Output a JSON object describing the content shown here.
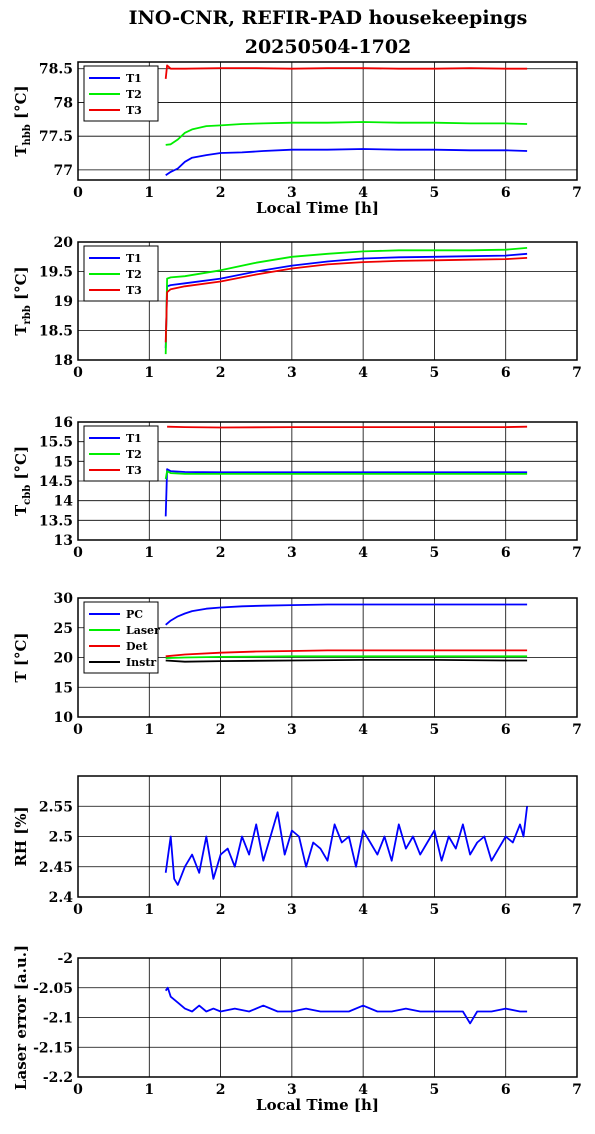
{
  "figure": {
    "title_line1": "INO-CNR, REFIR-PAD housekeepings",
    "title_line2": "20250504-1702"
  },
  "chart_data": [
    {
      "type": "line",
      "id": "hbb",
      "ylabel_main": "T",
      "ylabel_sub": "hbb",
      "ylabel_unit": "[°C]",
      "xlabel": "Local Time [h]",
      "xlim": [
        0,
        7
      ],
      "ylim": [
        76.85,
        78.6
      ],
      "xticks": [
        0,
        1,
        2,
        3,
        4,
        5,
        6,
        7
      ],
      "yticks": [
        77,
        77.5,
        78,
        78.5
      ],
      "ytick_labels": [
        "77",
        "77.5",
        "78",
        "78.5"
      ],
      "grid": true,
      "legend": "top-left",
      "series": [
        {
          "name": "T1",
          "color": "#0000ff",
          "x": [
            1.23,
            1.3,
            1.4,
            1.5,
            1.6,
            1.8,
            2.0,
            2.3,
            2.6,
            3.0,
            3.5,
            4.0,
            4.5,
            5.0,
            5.5,
            6.0,
            6.3
          ],
          "y": [
            76.92,
            76.97,
            77.02,
            77.12,
            77.18,
            77.22,
            77.25,
            77.26,
            77.28,
            77.3,
            77.3,
            77.31,
            77.3,
            77.3,
            77.29,
            77.29,
            77.28
          ]
        },
        {
          "name": "T2",
          "color": "#00ee00",
          "x": [
            1.23,
            1.3,
            1.4,
            1.5,
            1.6,
            1.8,
            2.0,
            2.3,
            2.6,
            3.0,
            3.5,
            4.0,
            4.5,
            5.0,
            5.5,
            6.0,
            6.3
          ],
          "y": [
            77.37,
            77.38,
            77.45,
            77.55,
            77.6,
            77.65,
            77.66,
            77.68,
            77.69,
            77.7,
            77.7,
            77.71,
            77.7,
            77.7,
            77.69,
            77.69,
            77.68
          ]
        },
        {
          "name": "T3",
          "color": "#ee0000",
          "x": [
            1.23,
            1.25,
            1.3,
            1.5,
            2.0,
            2.5,
            3.0,
            3.5,
            4.0,
            4.5,
            5.0,
            5.5,
            6.0,
            6.3
          ],
          "y": [
            78.35,
            78.55,
            78.5,
            78.5,
            78.51,
            78.51,
            78.5,
            78.51,
            78.51,
            78.5,
            78.5,
            78.51,
            78.5,
            78.5
          ]
        }
      ]
    },
    {
      "type": "line",
      "id": "rbb",
      "ylabel_main": "T",
      "ylabel_sub": "rbb",
      "ylabel_unit": "[°C]",
      "xlabel": "",
      "xlim": [
        0,
        7
      ],
      "ylim": [
        18,
        20
      ],
      "xticks": [
        0,
        1,
        2,
        3,
        4,
        5,
        6,
        7
      ],
      "yticks": [
        18,
        18.5,
        19,
        19.5,
        20
      ],
      "ytick_labels": [
        "18",
        "18.5",
        "19",
        "19.5",
        "20"
      ],
      "grid": true,
      "legend": "top-left",
      "series": [
        {
          "name": "T1",
          "color": "#0000ff",
          "x": [
            1.23,
            1.25,
            1.3,
            1.5,
            2.0,
            2.5,
            3.0,
            3.5,
            4.0,
            4.5,
            5.0,
            5.5,
            6.0,
            6.3
          ],
          "y": [
            18.2,
            19.25,
            19.27,
            19.3,
            19.38,
            19.5,
            19.6,
            19.67,
            19.72,
            19.74,
            19.75,
            19.76,
            19.77,
            19.8
          ]
        },
        {
          "name": "T2",
          "color": "#00ee00",
          "x": [
            1.23,
            1.25,
            1.3,
            1.5,
            2.0,
            2.5,
            3.0,
            3.5,
            4.0,
            4.5,
            5.0,
            5.5,
            6.0,
            6.3
          ],
          "y": [
            18.1,
            19.38,
            19.4,
            19.42,
            19.52,
            19.65,
            19.75,
            19.8,
            19.84,
            19.86,
            19.86,
            19.86,
            19.87,
            19.9
          ]
        },
        {
          "name": "T3",
          "color": "#ee0000",
          "x": [
            1.23,
            1.25,
            1.3,
            1.5,
            2.0,
            2.5,
            3.0,
            3.5,
            4.0,
            4.5,
            5.0,
            5.5,
            6.0,
            6.3
          ],
          "y": [
            18.3,
            19.15,
            19.2,
            19.25,
            19.33,
            19.45,
            19.55,
            19.62,
            19.66,
            19.68,
            19.69,
            19.7,
            19.71,
            19.73
          ]
        }
      ]
    },
    {
      "type": "line",
      "id": "cbb",
      "ylabel_main": "T",
      "ylabel_sub": "cbb",
      "ylabel_unit": "[°C]",
      "xlabel": "",
      "xlim": [
        0,
        7
      ],
      "ylim": [
        13,
        16
      ],
      "xticks": [
        0,
        1,
        2,
        3,
        4,
        5,
        6,
        7
      ],
      "yticks": [
        13,
        13.5,
        14,
        14.5,
        15,
        15.5,
        16
      ],
      "ytick_labels": [
        "13",
        "13.5",
        "14",
        "14.5",
        "15",
        "15.5",
        "16"
      ],
      "grid": true,
      "legend": "top-left",
      "series": [
        {
          "name": "T1",
          "color": "#0000ff",
          "x": [
            1.23,
            1.25,
            1.3,
            1.5,
            2.0,
            3.0,
            4.0,
            5.0,
            6.0,
            6.3
          ],
          "y": [
            13.6,
            14.8,
            14.75,
            14.73,
            14.72,
            14.72,
            14.72,
            14.72,
            14.72,
            14.72
          ]
        },
        {
          "name": "T2",
          "color": "#00ee00",
          "x": [
            1.23,
            1.25,
            1.3,
            1.5,
            2.0,
            3.0,
            4.0,
            5.0,
            6.0,
            6.3
          ],
          "y": [
            14.55,
            14.75,
            14.7,
            14.68,
            14.68,
            14.68,
            14.68,
            14.68,
            14.68,
            14.68
          ]
        },
        {
          "name": "T3",
          "color": "#ee0000",
          "x": [
            1.25,
            1.5,
            2.0,
            3.0,
            4.0,
            5.0,
            6.0,
            6.3
          ],
          "y": [
            15.88,
            15.87,
            15.86,
            15.87,
            15.87,
            15.87,
            15.87,
            15.88
          ]
        }
      ]
    },
    {
      "type": "line",
      "id": "temps",
      "ylabel_main": "T [°C]",
      "ylabel_sub": "",
      "ylabel_unit": "",
      "xlabel": "",
      "xlim": [
        0,
        7
      ],
      "ylim": [
        10,
        30
      ],
      "xticks": [
        0,
        1,
        2,
        3,
        4,
        5,
        6,
        7
      ],
      "yticks": [
        10,
        15,
        20,
        25,
        30
      ],
      "ytick_labels": [
        "10",
        "15",
        "20",
        "25",
        "30"
      ],
      "grid": true,
      "legend": "top-left",
      "series": [
        {
          "name": "PC",
          "color": "#0000ff",
          "x": [
            1.23,
            1.3,
            1.4,
            1.5,
            1.6,
            1.8,
            2.0,
            2.3,
            2.6,
            3.0,
            3.5,
            4.0,
            4.5,
            5.0,
            5.5,
            6.0,
            6.3
          ],
          "y": [
            25.5,
            26.2,
            26.9,
            27.4,
            27.8,
            28.2,
            28.4,
            28.6,
            28.7,
            28.8,
            28.9,
            28.9,
            28.9,
            28.9,
            28.9,
            28.9,
            28.9
          ]
        },
        {
          "name": "Laser",
          "color": "#00ee00",
          "x": [
            1.23,
            1.5,
            2.0,
            3.0,
            4.0,
            5.0,
            6.0,
            6.3
          ],
          "y": [
            19.9,
            20.0,
            20.1,
            20.2,
            20.2,
            20.2,
            20.2,
            20.2
          ]
        },
        {
          "name": "Det",
          "color": "#ee0000",
          "x": [
            1.23,
            1.5,
            2.0,
            2.5,
            3.0,
            3.5,
            4.0,
            5.0,
            6.0,
            6.3
          ],
          "y": [
            20.2,
            20.5,
            20.8,
            21.0,
            21.1,
            21.2,
            21.2,
            21.2,
            21.2,
            21.2
          ]
        },
        {
          "name": "Instr",
          "color": "#000000",
          "x": [
            1.23,
            1.5,
            2.0,
            3.0,
            4.0,
            5.0,
            6.0,
            6.3
          ],
          "y": [
            19.5,
            19.3,
            19.4,
            19.5,
            19.6,
            19.6,
            19.5,
            19.5
          ]
        }
      ]
    },
    {
      "type": "line",
      "id": "rh",
      "ylabel_main": "RH [%]",
      "ylabel_sub": "",
      "ylabel_unit": "",
      "xlabel": "",
      "xlim": [
        0,
        7
      ],
      "ylim": [
        2.4,
        2.6
      ],
      "xticks": [
        0,
        1,
        2,
        3,
        4,
        5,
        6,
        7
      ],
      "yticks": [
        2.4,
        2.45,
        2.5,
        2.55
      ],
      "ytick_labels": [
        "2.4",
        "2.45",
        "2.5",
        "2.55"
      ],
      "grid": true,
      "legend": "none",
      "series": [
        {
          "name": "",
          "color": "#0000ff",
          "x": [
            1.23,
            1.3,
            1.35,
            1.4,
            1.5,
            1.6,
            1.7,
            1.8,
            1.9,
            2.0,
            2.1,
            2.2,
            2.3,
            2.4,
            2.5,
            2.6,
            2.7,
            2.8,
            2.9,
            3.0,
            3.1,
            3.2,
            3.3,
            3.4,
            3.5,
            3.6,
            3.7,
            3.8,
            3.9,
            4.0,
            4.1,
            4.2,
            4.3,
            4.4,
            4.5,
            4.6,
            4.7,
            4.8,
            4.9,
            5.0,
            5.1,
            5.2,
            5.3,
            5.4,
            5.5,
            5.6,
            5.7,
            5.8,
            5.9,
            6.0,
            6.1,
            6.2,
            6.25,
            6.3
          ],
          "y": [
            2.44,
            2.5,
            2.43,
            2.42,
            2.45,
            2.47,
            2.44,
            2.5,
            2.43,
            2.47,
            2.48,
            2.45,
            2.5,
            2.47,
            2.52,
            2.46,
            2.5,
            2.54,
            2.47,
            2.51,
            2.5,
            2.45,
            2.49,
            2.48,
            2.46,
            2.52,
            2.49,
            2.5,
            2.45,
            2.51,
            2.49,
            2.47,
            2.5,
            2.46,
            2.52,
            2.48,
            2.5,
            2.47,
            2.49,
            2.51,
            2.46,
            2.5,
            2.48,
            2.52,
            2.47,
            2.49,
            2.5,
            2.46,
            2.48,
            2.5,
            2.49,
            2.52,
            2.5,
            2.55
          ]
        }
      ]
    },
    {
      "type": "line",
      "id": "laser",
      "ylabel_main": "Laser error [a.u.]",
      "ylabel_sub": "",
      "ylabel_unit": "",
      "xlabel": "Local Time [h]",
      "xlim": [
        0,
        7
      ],
      "ylim": [
        -2.2,
        -2.0
      ],
      "xticks": [
        0,
        1,
        2,
        3,
        4,
        5,
        6,
        7
      ],
      "yticks": [
        -2.2,
        -2.15,
        -2.1,
        -2.05,
        -2.0
      ],
      "ytick_labels": [
        "-2.2",
        "-2.15",
        "-2.1",
        "-2.05",
        "-2"
      ],
      "grid": true,
      "legend": "none",
      "series": [
        {
          "name": "",
          "color": "#0000ff",
          "x": [
            1.23,
            1.26,
            1.3,
            1.4,
            1.5,
            1.6,
            1.7,
            1.8,
            1.9,
            2.0,
            2.2,
            2.4,
            2.6,
            2.8,
            3.0,
            3.2,
            3.4,
            3.6,
            3.8,
            4.0,
            4.2,
            4.4,
            4.6,
            4.8,
            5.0,
            5.2,
            5.4,
            5.5,
            5.6,
            5.8,
            6.0,
            6.2,
            6.3
          ],
          "y": [
            -2.055,
            -2.05,
            -2.065,
            -2.075,
            -2.085,
            -2.09,
            -2.08,
            -2.09,
            -2.085,
            -2.09,
            -2.085,
            -2.09,
            -2.08,
            -2.09,
            -2.09,
            -2.085,
            -2.09,
            -2.09,
            -2.09,
            -2.08,
            -2.09,
            -2.09,
            -2.085,
            -2.09,
            -2.09,
            -2.09,
            -2.09,
            -2.11,
            -2.09,
            -2.09,
            -2.085,
            -2.09,
            -2.09
          ]
        }
      ]
    }
  ]
}
